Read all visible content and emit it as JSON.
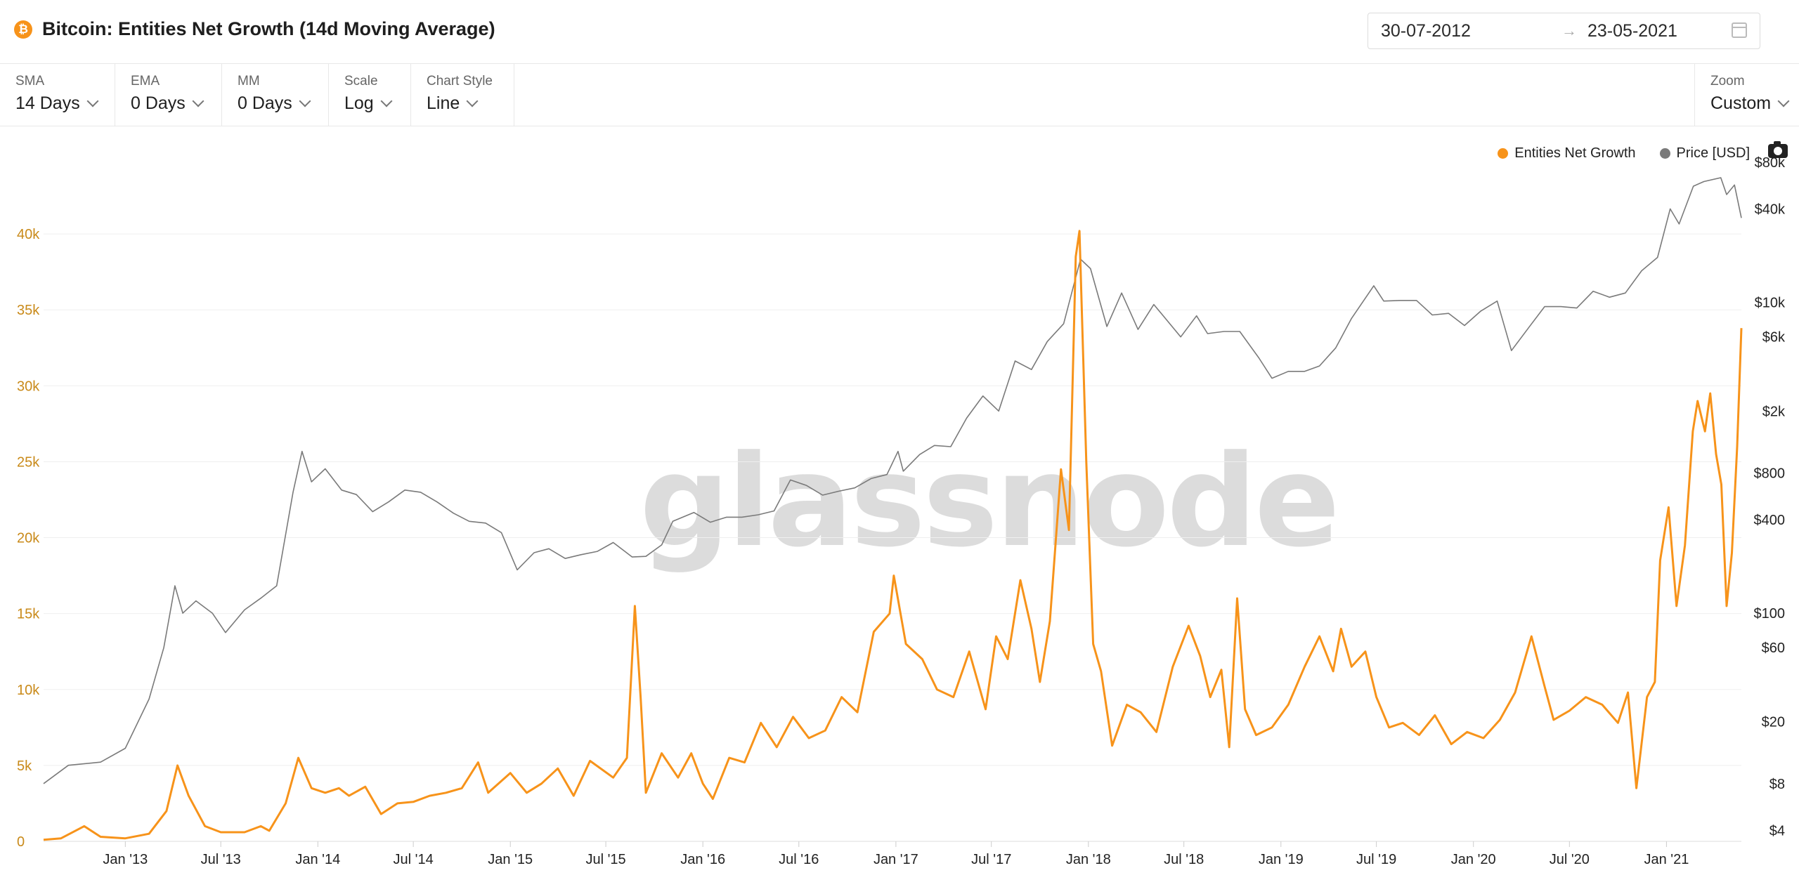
{
  "header": {
    "title": "Bitcoin: Entities Net Growth (14d Moving Average)",
    "icon": "bitcoin-icon",
    "date_start": "30-07-2012",
    "date_arrow": "→",
    "date_end": "23-05-2021"
  },
  "toolbar": {
    "sma": {
      "label": "SMA",
      "value": "14 Days"
    },
    "ema": {
      "label": "EMA",
      "value": "0 Days"
    },
    "mm": {
      "label": "MM",
      "value": "0 Days"
    },
    "scale": {
      "label": "Scale",
      "value": "Log"
    },
    "chart_style": {
      "label": "Chart Style",
      "value": "Line"
    },
    "zoom": {
      "label": "Zoom",
      "value": "Custom"
    }
  },
  "watermark": "glassnode",
  "colors": {
    "growth": "#f7931a",
    "price": "#7a7a7a",
    "grid": "#efefef",
    "left_axis": "#c98a1a"
  },
  "chart_data": {
    "type": "line",
    "x_range": [
      "2012-07-30",
      "2021-05-23"
    ],
    "x_ticks": [
      "Jan '13",
      "Jul '13",
      "Jan '14",
      "Jul '14",
      "Jan '15",
      "Jul '15",
      "Jan '16",
      "Jul '16",
      "Jan '17",
      "Jul '17",
      "Jan '18",
      "Jul '18",
      "Jan '19",
      "Jul '19",
      "Jan '20",
      "Jul '20",
      "Jan '21"
    ],
    "y_left": {
      "scale": "linear",
      "range": [
        0,
        45000
      ],
      "ticks": [
        "0",
        "5k",
        "10k",
        "15k",
        "20k",
        "25k",
        "30k",
        "35k",
        "40k"
      ]
    },
    "y_right": {
      "scale": "log",
      "range": [
        3.4,
        85000
      ],
      "ticks": [
        "$4",
        "$8",
        "$20",
        "$60",
        "$100",
        "$400",
        "$800",
        "$2k",
        "$6k",
        "$10k",
        "$40k",
        "$80k"
      ]
    },
    "legend": {
      "position": "top-right"
    },
    "series": [
      {
        "name": "Entities Net Growth",
        "axis": "left",
        "points": [
          [
            "2012-07-30",
            100
          ],
          [
            "2012-09-01",
            200
          ],
          [
            "2012-10-15",
            1000
          ],
          [
            "2012-11-15",
            300
          ],
          [
            "2013-01-01",
            200
          ],
          [
            "2013-02-15",
            500
          ],
          [
            "2013-03-20",
            2000
          ],
          [
            "2013-04-10",
            5000
          ],
          [
            "2013-05-01",
            3000
          ],
          [
            "2013-06-01",
            1000
          ],
          [
            "2013-07-01",
            600
          ],
          [
            "2013-08-15",
            600
          ],
          [
            "2013-09-15",
            1000
          ],
          [
            "2013-10-01",
            700
          ],
          [
            "2013-11-01",
            2500
          ],
          [
            "2013-11-25",
            5500
          ],
          [
            "2013-12-20",
            3500
          ],
          [
            "2014-01-15",
            3200
          ],
          [
            "2014-02-10",
            3500
          ],
          [
            "2014-03-01",
            3000
          ],
          [
            "2014-04-01",
            3600
          ],
          [
            "2014-05-01",
            1800
          ],
          [
            "2014-06-01",
            2500
          ],
          [
            "2014-07-01",
            2600
          ],
          [
            "2014-08-01",
            3000
          ],
          [
            "2014-09-01",
            3200
          ],
          [
            "2014-10-01",
            3500
          ],
          [
            "2014-11-01",
            5200
          ],
          [
            "2014-11-20",
            3200
          ],
          [
            "2015-01-01",
            4500
          ],
          [
            "2015-02-01",
            3200
          ],
          [
            "2015-03-01",
            3800
          ],
          [
            "2015-04-01",
            4800
          ],
          [
            "2015-05-01",
            3000
          ],
          [
            "2015-06-01",
            5300
          ],
          [
            "2015-07-15",
            4200
          ],
          [
            "2015-08-10",
            5500
          ],
          [
            "2015-08-25",
            15500
          ],
          [
            "2015-09-05",
            9500
          ],
          [
            "2015-09-15",
            3200
          ],
          [
            "2015-10-15",
            5800
          ],
          [
            "2015-11-15",
            4200
          ],
          [
            "2015-12-10",
            5800
          ],
          [
            "2016-01-01",
            3800
          ],
          [
            "2016-01-20",
            2800
          ],
          [
            "2016-02-20",
            5500
          ],
          [
            "2016-03-20",
            5200
          ],
          [
            "2016-04-20",
            7800
          ],
          [
            "2016-05-20",
            6200
          ],
          [
            "2016-06-20",
            8200
          ],
          [
            "2016-07-20",
            6800
          ],
          [
            "2016-08-20",
            7300
          ],
          [
            "2016-09-20",
            9500
          ],
          [
            "2016-10-20",
            8500
          ],
          [
            "2016-11-20",
            13800
          ],
          [
            "2016-12-20",
            15000
          ],
          [
            "2016-12-28",
            17500
          ],
          [
            "2017-01-20",
            13000
          ],
          [
            "2017-02-20",
            12000
          ],
          [
            "2017-03-20",
            10000
          ],
          [
            "2017-04-20",
            9500
          ],
          [
            "2017-05-20",
            12500
          ],
          [
            "2017-06-20",
            8700
          ],
          [
            "2017-07-10",
            13500
          ],
          [
            "2017-08-01",
            12000
          ],
          [
            "2017-08-25",
            17200
          ],
          [
            "2017-09-15",
            14000
          ],
          [
            "2017-10-01",
            10500
          ],
          [
            "2017-10-20",
            14500
          ],
          [
            "2017-11-10",
            24500
          ],
          [
            "2017-11-25",
            20500
          ],
          [
            "2017-12-08",
            38500
          ],
          [
            "2017-12-15",
            40200
          ],
          [
            "2017-12-28",
            25000
          ],
          [
            "2018-01-10",
            13000
          ],
          [
            "2018-01-25",
            11200
          ],
          [
            "2018-02-15",
            6300
          ],
          [
            "2018-03-15",
            9000
          ],
          [
            "2018-04-10",
            8500
          ],
          [
            "2018-05-10",
            7200
          ],
          [
            "2018-06-10",
            11500
          ],
          [
            "2018-07-10",
            14200
          ],
          [
            "2018-08-01",
            12200
          ],
          [
            "2018-08-20",
            9500
          ],
          [
            "2018-09-10",
            11300
          ],
          [
            "2018-09-25",
            6200
          ],
          [
            "2018-10-10",
            16000
          ],
          [
            "2018-10-25",
            8700
          ],
          [
            "2018-11-15",
            7000
          ],
          [
            "2018-12-15",
            7500
          ],
          [
            "2019-01-15",
            9000
          ],
          [
            "2019-02-15",
            11500
          ],
          [
            "2019-03-15",
            13500
          ],
          [
            "2019-04-10",
            11200
          ],
          [
            "2019-04-25",
            14000
          ],
          [
            "2019-05-15",
            11500
          ],
          [
            "2019-06-10",
            12500
          ],
          [
            "2019-07-01",
            9500
          ],
          [
            "2019-07-25",
            7500
          ],
          [
            "2019-08-20",
            7800
          ],
          [
            "2019-09-20",
            7000
          ],
          [
            "2019-10-20",
            8300
          ],
          [
            "2019-11-20",
            6400
          ],
          [
            "2019-12-20",
            7200
          ],
          [
            "2020-01-20",
            6800
          ],
          [
            "2020-02-20",
            8000
          ],
          [
            "2020-03-20",
            9800
          ],
          [
            "2020-04-20",
            13500
          ],
          [
            "2020-05-15",
            10200
          ],
          [
            "2020-06-01",
            8000
          ],
          [
            "2020-07-01",
            8600
          ],
          [
            "2020-08-01",
            9500
          ],
          [
            "2020-09-01",
            9000
          ],
          [
            "2020-10-01",
            7800
          ],
          [
            "2020-10-20",
            9800
          ],
          [
            "2020-11-05",
            3500
          ],
          [
            "2020-11-25",
            9500
          ],
          [
            "2020-12-10",
            10500
          ],
          [
            "2020-12-20",
            18500
          ],
          [
            "2021-01-05",
            22000
          ],
          [
            "2021-01-20",
            15500
          ],
          [
            "2021-02-05",
            19500
          ],
          [
            "2021-02-20",
            27000
          ],
          [
            "2021-03-01",
            29000
          ],
          [
            "2021-03-15",
            27000
          ],
          [
            "2021-03-25",
            29500
          ],
          [
            "2021-04-05",
            25500
          ],
          [
            "2021-04-15",
            23500
          ],
          [
            "2021-04-25",
            15500
          ],
          [
            "2021-05-05",
            19000
          ],
          [
            "2021-05-15",
            26000
          ],
          [
            "2021-05-23",
            33800
          ]
        ]
      },
      {
        "name": "Price [USD]",
        "axis": "right",
        "points": [
          [
            "2012-07-30",
            8
          ],
          [
            "2012-09-15",
            10.5
          ],
          [
            "2012-11-15",
            11
          ],
          [
            "2013-01-01",
            13.5
          ],
          [
            "2013-02-15",
            28
          ],
          [
            "2013-03-15",
            60
          ],
          [
            "2013-04-05",
            150
          ],
          [
            "2013-04-20",
            100
          ],
          [
            "2013-05-15",
            120
          ],
          [
            "2013-06-15",
            100
          ],
          [
            "2013-07-10",
            75
          ],
          [
            "2013-08-15",
            105
          ],
          [
            "2013-09-15",
            125
          ],
          [
            "2013-10-15",
            150
          ],
          [
            "2013-11-15",
            600
          ],
          [
            "2013-12-02",
            1100
          ],
          [
            "2013-12-20",
            700
          ],
          [
            "2014-01-15",
            850
          ],
          [
            "2014-02-15",
            620
          ],
          [
            "2014-03-15",
            580
          ],
          [
            "2014-04-15",
            450
          ],
          [
            "2014-05-15",
            520
          ],
          [
            "2014-06-15",
            620
          ],
          [
            "2014-07-15",
            600
          ],
          [
            "2014-08-15",
            520
          ],
          [
            "2014-09-15",
            440
          ],
          [
            "2014-10-15",
            390
          ],
          [
            "2014-11-15",
            380
          ],
          [
            "2014-12-15",
            330
          ],
          [
            "2015-01-14",
            190
          ],
          [
            "2015-02-15",
            245
          ],
          [
            "2015-03-15",
            260
          ],
          [
            "2015-04-15",
            225
          ],
          [
            "2015-05-15",
            238
          ],
          [
            "2015-06-15",
            250
          ],
          [
            "2015-07-15",
            285
          ],
          [
            "2015-08-20",
            230
          ],
          [
            "2015-09-15",
            232
          ],
          [
            "2015-10-15",
            275
          ],
          [
            "2015-11-05",
            390
          ],
          [
            "2015-12-15",
            445
          ],
          [
            "2016-01-15",
            385
          ],
          [
            "2016-02-15",
            415
          ],
          [
            "2016-03-15",
            415
          ],
          [
            "2016-04-15",
            430
          ],
          [
            "2016-05-15",
            455
          ],
          [
            "2016-06-15",
            720
          ],
          [
            "2016-07-15",
            665
          ],
          [
            "2016-08-15",
            575
          ],
          [
            "2016-09-15",
            610
          ],
          [
            "2016-10-15",
            640
          ],
          [
            "2016-11-15",
            735
          ],
          [
            "2016-12-15",
            780
          ],
          [
            "2017-01-05",
            1100
          ],
          [
            "2017-01-15",
            820
          ],
          [
            "2017-02-15",
            1050
          ],
          [
            "2017-03-15",
            1200
          ],
          [
            "2017-04-15",
            1180
          ],
          [
            "2017-05-15",
            1800
          ],
          [
            "2017-06-15",
            2500
          ],
          [
            "2017-07-15",
            2000
          ],
          [
            "2017-08-15",
            4200
          ],
          [
            "2017-09-15",
            3700
          ],
          [
            "2017-10-15",
            5600
          ],
          [
            "2017-11-15",
            7300
          ],
          [
            "2017-12-17",
            19000
          ],
          [
            "2018-01-05",
            16500
          ],
          [
            "2018-02-05",
            7000
          ],
          [
            "2018-03-05",
            11500
          ],
          [
            "2018-04-05",
            6700
          ],
          [
            "2018-05-05",
            9700
          ],
          [
            "2018-06-25",
            6000
          ],
          [
            "2018-07-25",
            8200
          ],
          [
            "2018-08-15",
            6300
          ],
          [
            "2018-09-15",
            6500
          ],
          [
            "2018-10-15",
            6500
          ],
          [
            "2018-11-20",
            4400
          ],
          [
            "2018-12-15",
            3250
          ],
          [
            "2019-01-15",
            3600
          ],
          [
            "2019-02-15",
            3600
          ],
          [
            "2019-03-15",
            3900
          ],
          [
            "2019-04-15",
            5100
          ],
          [
            "2019-05-15",
            7900
          ],
          [
            "2019-06-26",
            12800
          ],
          [
            "2019-07-15",
            10200
          ],
          [
            "2019-08-15",
            10300
          ],
          [
            "2019-09-15",
            10300
          ],
          [
            "2019-10-15",
            8300
          ],
          [
            "2019-11-15",
            8500
          ],
          [
            "2019-12-15",
            7100
          ],
          [
            "2020-01-15",
            8800
          ],
          [
            "2020-02-15",
            10200
          ],
          [
            "2020-03-13",
            4900
          ],
          [
            "2020-04-15",
            6900
          ],
          [
            "2020-05-15",
            9400
          ],
          [
            "2020-06-15",
            9400
          ],
          [
            "2020-07-15",
            9200
          ],
          [
            "2020-08-15",
            11800
          ],
          [
            "2020-09-15",
            10800
          ],
          [
            "2020-10-15",
            11500
          ],
          [
            "2020-11-15",
            16000
          ],
          [
            "2020-12-15",
            19500
          ],
          [
            "2021-01-08",
            40000
          ],
          [
            "2021-01-25",
            32000
          ],
          [
            "2021-02-21",
            56000
          ],
          [
            "2021-03-13",
            60000
          ],
          [
            "2021-04-14",
            63500
          ],
          [
            "2021-04-25",
            49500
          ],
          [
            "2021-05-10",
            57000
          ],
          [
            "2021-05-23",
            35000
          ]
        ]
      }
    ]
  }
}
